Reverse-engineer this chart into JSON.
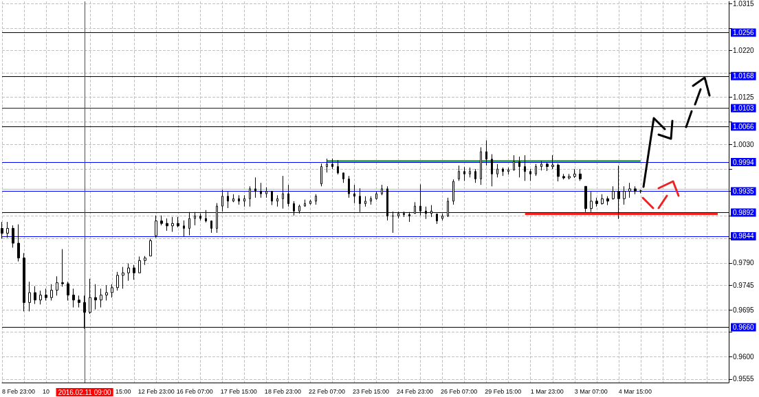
{
  "chart_data": {
    "type": "candlestick",
    "categories": [
      null,
      null,
      null,
      "8 Feb 23:00",
      null,
      null,
      null,
      null,
      "10",
      null,
      null,
      null,
      null,
      null,
      null,
      "2016.02.11 09:00",
      null,
      null,
      null,
      null,
      null,
      null,
      "15:00",
      null,
      null,
      null,
      null,
      null,
      "12 Feb 23:00",
      null,
      null,
      null,
      null,
      null,
      null,
      "16 Feb 07:00",
      null,
      null,
      null,
      null,
      null,
      null,
      null,
      "17 Feb 15:00",
      null,
      null,
      null,
      null,
      null,
      null,
      null,
      "18 Feb 23:00",
      null,
      null,
      null,
      null,
      null,
      null,
      null,
      "22 Feb 07:00",
      null,
      null,
      null,
      null,
      null,
      null,
      null,
      "23 Feb 15:00",
      null,
      null,
      null,
      null,
      null,
      null,
      null,
      "24 Feb 23:00",
      null,
      null,
      null,
      null,
      null,
      null,
      null,
      "26 Feb 07:00",
      null,
      null,
      null,
      null,
      null,
      null,
      null,
      "29 Feb 15:00",
      null,
      null,
      null,
      null,
      null,
      null,
      null,
      "1 Mar 23:00",
      null,
      null,
      null,
      null,
      null,
      null,
      null,
      "3 Mar 07:00",
      null,
      null,
      null,
      null,
      null,
      null,
      null,
      "4 Mar 15:00",
      null,
      null,
      null,
      null,
      null,
      null,
      null,
      null,
      null,
      null,
      null,
      null,
      null,
      null,
      null,
      null,
      null
    ],
    "ohlc": [
      [
        0.986,
        0.9873,
        0.9839,
        0.985
      ],
      [
        0.985,
        0.9873,
        0.9841,
        0.986
      ],
      [
        0.986,
        0.9866,
        0.9821,
        0.983
      ],
      [
        0.983,
        0.9868,
        0.9793,
        0.98
      ],
      [
        0.98,
        0.981,
        0.9692,
        0.971
      ],
      [
        0.971,
        0.9752,
        0.9692,
        0.973
      ],
      [
        0.973,
        0.9743,
        0.9707,
        0.9715
      ],
      [
        0.9715,
        0.9734,
        0.9706,
        0.9725
      ],
      [
        0.9725,
        0.9738,
        0.9714,
        0.972
      ],
      [
        0.972,
        0.9747,
        0.9714,
        0.9735
      ],
      [
        0.9735,
        0.9763,
        0.9724,
        0.975
      ],
      [
        0.975,
        0.9818,
        0.9742,
        0.9748
      ],
      [
        0.9748,
        0.9752,
        0.9714,
        0.9725
      ],
      [
        0.9725,
        0.9738,
        0.97,
        0.9715
      ],
      [
        0.9715,
        0.9724,
        0.97,
        0.971
      ],
      [
        0.971,
        0.9724,
        0.9657,
        0.969
      ],
      [
        0.969,
        0.9758,
        0.9687,
        0.972
      ],
      [
        0.972,
        0.9747,
        0.9696,
        0.9715
      ],
      [
        0.9715,
        0.9738,
        0.97,
        0.9725
      ],
      [
        0.9725,
        0.9745,
        0.9714,
        0.973
      ],
      [
        0.973,
        0.9747,
        0.972,
        0.974
      ],
      [
        0.974,
        0.9772,
        0.9734,
        0.9765
      ],
      [
        0.9765,
        0.9782,
        0.9738,
        0.977
      ],
      [
        0.977,
        0.9789,
        0.9754,
        0.978
      ],
      [
        0.978,
        0.9786,
        0.9756,
        0.977
      ],
      [
        0.977,
        0.9803,
        0.977,
        0.9795
      ],
      [
        0.9795,
        0.9804,
        0.9786,
        0.98
      ],
      [
        0.9804,
        0.9839,
        0.9804,
        0.9835
      ],
      [
        0.9845,
        0.9886,
        0.9841,
        0.9875
      ],
      [
        0.9875,
        0.9886,
        0.9866,
        0.987
      ],
      [
        0.987,
        0.988,
        0.9855,
        0.9865
      ],
      [
        0.9865,
        0.9883,
        0.9853,
        0.987
      ],
      [
        0.987,
        0.9883,
        0.9862,
        0.9865
      ],
      [
        0.9865,
        0.9876,
        0.9844,
        0.986
      ],
      [
        0.986,
        0.9893,
        0.9846,
        0.988
      ],
      [
        0.988,
        0.9893,
        0.9866,
        0.9885
      ],
      [
        0.9885,
        0.989,
        0.9876,
        0.988
      ],
      [
        0.988,
        0.9897,
        0.9872,
        0.9875
      ],
      [
        0.9875,
        0.9876,
        0.9851,
        0.986
      ],
      [
        0.986,
        0.9911,
        0.9851,
        0.9905
      ],
      [
        0.9905,
        0.9938,
        0.9894,
        0.9925
      ],
      [
        0.9925,
        0.9934,
        0.9901,
        0.9915
      ],
      [
        0.9915,
        0.9929,
        0.9913,
        0.992
      ],
      [
        0.992,
        0.9927,
        0.9908,
        0.9915
      ],
      [
        0.9915,
        0.9927,
        0.9904,
        0.992
      ],
      [
        0.992,
        0.9945,
        0.9904,
        0.994
      ],
      [
        0.994,
        0.9963,
        0.9922,
        0.9935
      ],
      [
        0.9935,
        0.9952,
        0.9922,
        0.993
      ],
      [
        0.993,
        0.9943,
        0.9922,
        0.9935
      ],
      [
        0.9935,
        0.9936,
        0.9907,
        0.9915
      ],
      [
        0.9915,
        0.9927,
        0.9904,
        0.992
      ],
      [
        0.992,
        0.9966,
        0.99,
        0.993
      ],
      [
        0.993,
        0.9948,
        0.9904,
        0.991
      ],
      [
        0.991,
        0.9915,
        0.9886,
        0.9895
      ],
      [
        0.9895,
        0.9908,
        0.989,
        0.9905
      ],
      [
        0.9905,
        0.9918,
        0.9904,
        0.991
      ],
      [
        0.991,
        0.9918,
        0.9908,
        0.9915
      ],
      [
        0.9915,
        0.9929,
        0.9908,
        0.9925
      ],
      [
        0.995,
        0.9991,
        0.9945,
        0.9985
      ],
      [
        0.9985,
        1.0001,
        0.9973,
        0.999
      ],
      [
        0.999,
        1.0001,
        0.998,
        0.9985
      ],
      [
        0.9985,
        0.9998,
        0.9969,
        0.9972
      ],
      [
        0.9972,
        0.9973,
        0.9952,
        0.996
      ],
      [
        0.996,
        0.9966,
        0.9922,
        0.993
      ],
      [
        0.993,
        0.9948,
        0.9911,
        0.9925
      ],
      [
        0.9925,
        0.9941,
        0.9893,
        0.991
      ],
      [
        0.991,
        0.9925,
        0.9904,
        0.9915
      ],
      [
        0.9915,
        0.9925,
        0.9908,
        0.992
      ],
      [
        0.992,
        0.9934,
        0.9918,
        0.993
      ],
      [
        0.993,
        0.9948,
        0.9927,
        0.994
      ],
      [
        0.994,
        0.9945,
        0.9876,
        0.9885
      ],
      [
        0.9885,
        0.9894,
        0.9851,
        0.9885
      ],
      [
        0.9885,
        0.9894,
        0.988,
        0.989
      ],
      [
        0.989,
        0.9894,
        0.9883,
        0.9888
      ],
      [
        0.9888,
        0.9893,
        0.9873,
        0.9885
      ],
      [
        0.989,
        0.9913,
        0.989,
        0.9905
      ],
      [
        0.9905,
        0.9949,
        0.9886,
        0.9895
      ],
      [
        0.9895,
        0.9904,
        0.9879,
        0.989
      ],
      [
        0.989,
        0.9907,
        0.9883,
        0.9895
      ],
      [
        0.9889,
        0.989,
        0.9869,
        0.9875
      ],
      [
        0.988,
        0.989,
        0.9876,
        0.9885
      ],
      [
        0.9885,
        0.9922,
        0.9883,
        0.9915
      ],
      [
        0.9915,
        0.9959,
        0.9908,
        0.9955
      ],
      [
        0.996,
        0.9987,
        0.9956,
        0.9975
      ],
      [
        0.9975,
        0.9984,
        0.9956,
        0.997
      ],
      [
        0.997,
        0.9983,
        0.9963,
        0.9975
      ],
      [
        0.9975,
        0.998,
        0.9952,
        0.996
      ],
      [
        0.996,
        1.0024,
        0.9948,
        1.0015
      ],
      [
        1.0015,
        1.0038,
        0.9987,
        1.0
      ],
      [
        1.0,
        1.001,
        0.9945,
        0.997
      ],
      [
        0.997,
        0.999,
        0.9963,
        0.998
      ],
      [
        0.998,
        0.9983,
        0.9966,
        0.9975
      ],
      [
        0.9975,
        0.9983,
        0.9969,
        0.9978
      ],
      [
        0.9978,
        1.0008,
        0.9977,
        0.9995
      ],
      [
        0.9995,
        1.0005,
        0.9963,
        0.9985
      ],
      [
        0.9985,
        1.0008,
        0.9956,
        0.9975
      ],
      [
        0.9975,
        0.998,
        0.9956,
        0.997
      ],
      [
        0.997,
        0.999,
        0.9966,
        0.9985
      ],
      [
        0.9985,
        0.9996,
        0.9977,
        0.999
      ],
      [
        0.999,
        0.9994,
        0.9976,
        0.9985
      ],
      [
        0.9985,
        1.0008,
        0.998,
        0.9988
      ],
      [
        0.9988,
        0.9991,
        0.9955,
        0.9965
      ],
      [
        0.9965,
        0.997,
        0.9959,
        0.9962
      ],
      [
        0.9962,
        0.997,
        0.9959,
        0.9965
      ],
      [
        0.9965,
        0.998,
        0.9962,
        0.997
      ],
      [
        0.997,
        0.998,
        0.9956,
        0.996
      ],
      [
        0.9945,
        0.9945,
        0.9893,
        0.99
      ],
      [
        0.99,
        0.9934,
        0.9893,
        0.9915
      ],
      [
        0.9915,
        0.9922,
        0.9904,
        0.991
      ],
      [
        0.991,
        0.9929,
        0.9908,
        0.992
      ],
      [
        0.992,
        0.9925,
        0.9907,
        0.9915
      ],
      [
        0.992,
        0.9945,
        0.9918,
        0.9935
      ],
      [
        0.9935,
        0.9987,
        0.9879,
        0.992
      ],
      [
        0.992,
        0.9945,
        0.9908,
        0.9935
      ],
      [
        0.9935,
        0.9952,
        0.9922,
        0.994
      ],
      [
        0.994,
        0.9945,
        0.9929,
        0.9935
      ],
      [
        0.9935,
        0.9938,
        0.9931,
        0.9936
      ],
      null,
      null,
      null,
      null,
      null,
      null,
      null,
      null,
      null,
      null,
      null,
      null,
      null,
      null,
      null,
      null
    ],
    "color": "#000000",
    "series": [
      {
        "type": "line",
        "color": "#2db34a",
        "values": [
          null,
          null,
          null,
          null,
          null,
          null,
          null,
          null,
          null,
          null,
          null,
          null,
          null,
          null,
          null,
          null,
          null,
          null,
          null,
          null,
          null,
          null,
          null,
          null,
          null,
          null,
          null,
          null,
          null,
          null,
          null,
          null,
          null,
          null,
          null,
          null,
          null,
          null,
          null,
          null,
          null,
          null,
          null,
          null,
          null,
          null,
          null,
          null,
          null,
          null,
          null,
          null,
          null,
          null,
          null,
          null,
          null,
          null,
          null,
          0.9996,
          0.9996,
          0.9996,
          0.9996,
          0.9996,
          0.9996,
          0.9996,
          0.9996,
          0.9996,
          0.9996,
          0.9996,
          0.9996,
          0.9996,
          0.9996,
          0.9996,
          0.9996,
          0.9996,
          0.9996,
          0.9996,
          0.9996,
          0.9996,
          0.9996,
          0.9996,
          0.9996,
          0.9996,
          0.9996,
          0.9996,
          0.9996,
          0.9996,
          0.9996,
          0.9996,
          0.9996,
          0.9996,
          0.9996,
          0.9996,
          0.9996,
          0.9996,
          0.9996,
          0.9996,
          0.9996,
          0.9996,
          0.9996,
          0.9996,
          0.9996,
          0.9996,
          0.9996,
          0.9996,
          0.9996,
          0.9996,
          0.9996,
          0.9996,
          0.9996,
          0.9996,
          0.9996,
          0.9996,
          0.9996,
          0.9996,
          0.9996,
          null,
          null,
          null,
          null,
          null,
          null,
          null,
          null,
          null,
          null,
          null,
          null,
          null,
          null,
          null,
          null
        ]
      },
      {
        "type": "line",
        "color": "#ff2020",
        "values": [
          null,
          null,
          null,
          null,
          null,
          null,
          null,
          null,
          null,
          null,
          null,
          null,
          null,
          null,
          null,
          null,
          null,
          null,
          null,
          null,
          null,
          null,
          null,
          null,
          null,
          null,
          null,
          null,
          null,
          null,
          null,
          null,
          null,
          null,
          null,
          null,
          null,
          null,
          null,
          null,
          null,
          null,
          null,
          null,
          null,
          null,
          null,
          null,
          null,
          null,
          null,
          null,
          null,
          null,
          null,
          null,
          null,
          null,
          null,
          null,
          null,
          null,
          null,
          null,
          null,
          null,
          null,
          null,
          null,
          null,
          null,
          null,
          null,
          null,
          null,
          null,
          null,
          null,
          null,
          null,
          null,
          null,
          null,
          null,
          null,
          null,
          null,
          null,
          null,
          null,
          null,
          null,
          null,
          null,
          null,
          0.9889,
          0.9889,
          0.9889,
          0.9889,
          0.9889,
          0.9889,
          0.9889,
          0.9889,
          0.9889,
          0.9889,
          0.9889,
          0.9889,
          0.9889,
          0.9889,
          0.9889,
          0.9889,
          0.9889,
          0.9889,
          0.9889,
          0.9889,
          0.9889,
          0.9889,
          0.9889,
          0.9889,
          0.9889,
          0.9889,
          0.9889,
          0.9889,
          0.9889,
          0.9889,
          0.9889,
          0.9889,
          0.9889,
          0.9889,
          0.9889,
          0.9889,
          null,
          null
        ]
      }
    ],
    "ylim": [
      0.9548,
      1.0319
    ],
    "yticks": [
      0.9555,
      {
        "value": 0.96,
        "label": "0.9600"
      },
      {
        "value": 0.965,
        "label": null
      },
      0.9695,
      0.9745,
      {
        "value": 0.979,
        "label": "0.9790"
      },
      {
        "value": 0.984,
        "label": null
      },
      {
        "value": 0.9885,
        "label": null
      },
      {
        "value": 0.9935,
        "label": null
      },
      {
        "value": 0.998,
        "label": null
      },
      {
        "value": 1.003,
        "label": "1.0030"
      },
      {
        "value": 1.0075,
        "label": null
      },
      1.0125,
      {
        "value": 1.0175,
        "label": null
      },
      {
        "value": 1.022,
        "label": "1.0220"
      },
      {
        "value": 1.0265,
        "label": null
      },
      1.0315
    ],
    "ref_lines": [
      {
        "axis": "y",
        "value": 1.0256,
        "label": "1.0256",
        "color": "#000000"
      },
      {
        "axis": "y",
        "value": 1.0168,
        "label": "1.0168",
        "color": "#000000"
      },
      {
        "axis": "y",
        "value": 1.0103,
        "label": "1.0103",
        "color": "#0000ff"
      },
      {
        "axis": "y",
        "value": 1.0066,
        "label": "1.0066",
        "color": "#000000"
      },
      {
        "axis": "y",
        "value": 0.9994,
        "label": "0.9994",
        "color": "#0000ff"
      },
      {
        "axis": "y",
        "value": 0.994,
        "color": "#c0c0c0"
      },
      {
        "axis": "y",
        "value": 0.9935,
        "label": "0.9935",
        "color": "#0000ff"
      },
      {
        "axis": "y",
        "value": 0.9892,
        "label": "0.9892",
        "color": "#000000"
      },
      {
        "axis": "y",
        "value": 0.9844,
        "label": "0.9844",
        "color": "#0000ff"
      },
      {
        "axis": "y",
        "value": 0.966,
        "label": "0.9660",
        "color": "#000000"
      },
      {
        "axis": "x",
        "value": "2016.02.11 09:00",
        "color": "#ff0000"
      }
    ],
    "grid": true,
    "marker": "none"
  }
}
